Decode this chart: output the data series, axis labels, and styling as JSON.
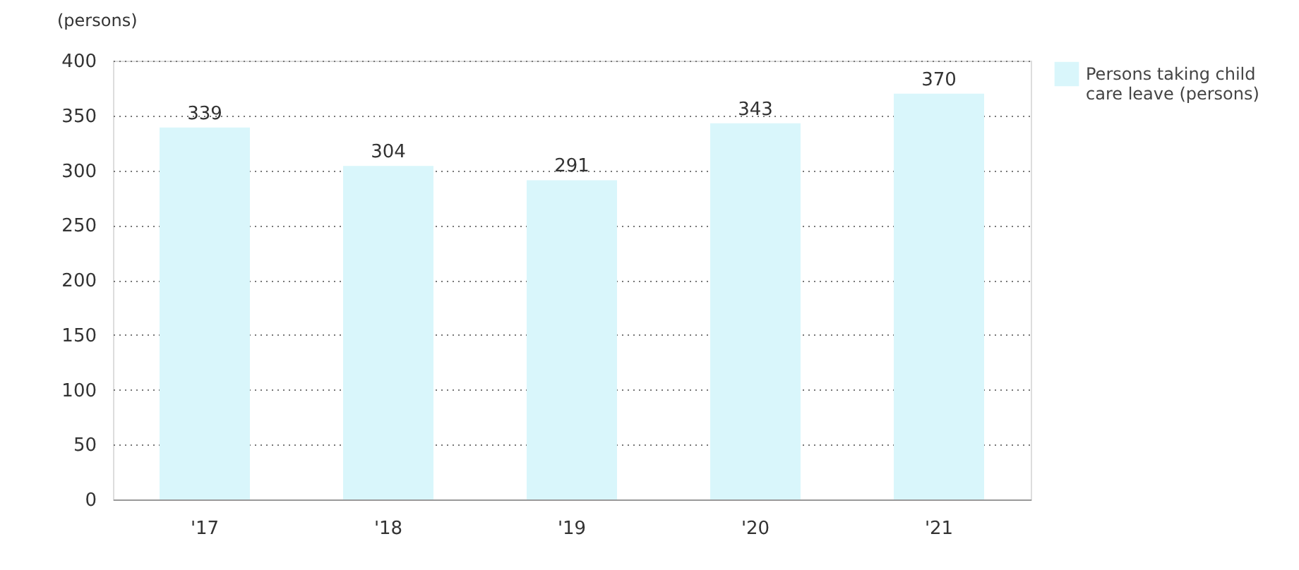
{
  "chart_data": {
    "type": "bar",
    "ylabel": "(persons)",
    "categories": [
      "'17",
      "'18",
      "'19",
      "'20",
      "'21"
    ],
    "series": [
      {
        "name": "Persons taking child care leave (persons)",
        "color": "#d9f6fb",
        "values": [
          339,
          304,
          291,
          343,
          370
        ]
      }
    ],
    "ylim": [
      0,
      400
    ],
    "yticks": [
      0,
      50,
      100,
      150,
      200,
      250,
      300,
      350,
      400
    ],
    "grid": "y",
    "legend": "right",
    "data_labels": true
  }
}
